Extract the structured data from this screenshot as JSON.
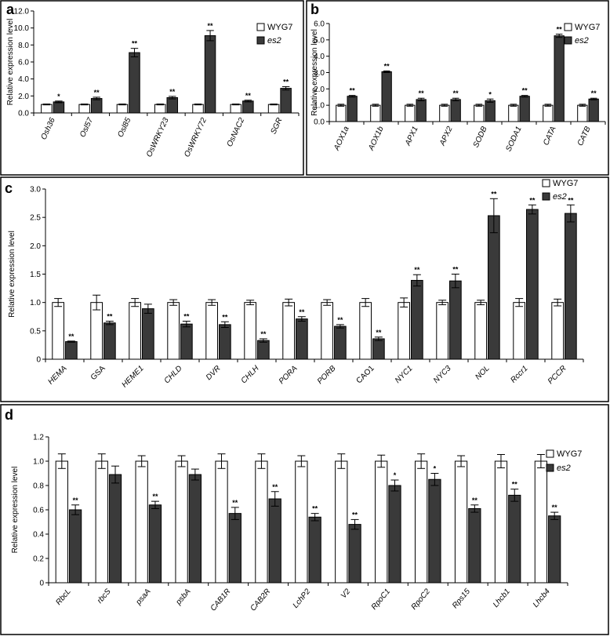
{
  "chart_data": [
    {
      "type": "bar",
      "panel_label": "a",
      "ylabel": "Relative expression level",
      "ylim": [
        0,
        12
      ],
      "yticks": [
        "0.0",
        "2.0",
        "4.0",
        "6.0",
        "8.0",
        "10.0",
        "12.0"
      ],
      "categories": [
        "Osh36",
        "Osl57",
        "Osl85",
        "OsWRKY23",
        "OsWRKY72",
        "OsNAC2",
        "SGR"
      ],
      "series": [
        {
          "name": "WYG7",
          "values": [
            1,
            1,
            1,
            1,
            1,
            1,
            1
          ],
          "errors": [
            0.05,
            0.05,
            0.05,
            0.05,
            0.05,
            0.05,
            0.05
          ]
        },
        {
          "name": "es2",
          "values": [
            1.3,
            1.7,
            7.1,
            1.8,
            9.1,
            1.4,
            2.9
          ],
          "errors": [
            0.1,
            0.15,
            0.5,
            0.15,
            0.6,
            0.1,
            0.2
          ]
        }
      ],
      "significance": [
        "*",
        "**",
        "**",
        "**",
        "**",
        "**",
        "**"
      ],
      "legend": [
        "WYG7",
        "es2"
      ],
      "legend_position": "top-right"
    },
    {
      "type": "bar",
      "panel_label": "b",
      "ylabel": "Relative expression level",
      "ylim": [
        0,
        6
      ],
      "yticks": [
        "0.0",
        "1.0",
        "2.0",
        "3.0",
        "4.0",
        "5.0",
        "6.0"
      ],
      "categories": [
        "AOX1a",
        "AOX1b",
        "APX1",
        "APX2",
        "SODB",
        "SODA1",
        "CATA",
        "CATB"
      ],
      "series": [
        {
          "name": "WYG7",
          "values": [
            1,
            1,
            1,
            1,
            1,
            1,
            1,
            1
          ],
          "errors": [
            0.06,
            0.06,
            0.06,
            0.06,
            0.06,
            0.06,
            0.06,
            0.06
          ]
        },
        {
          "name": "es2",
          "values": [
            1.55,
            3.05,
            1.35,
            1.35,
            1.28,
            1.55,
            5.25,
            1.38
          ],
          "errors": [
            0.05,
            0.05,
            0.08,
            0.08,
            0.1,
            0.05,
            0.1,
            0.05
          ]
        }
      ],
      "significance": [
        "**",
        "**",
        "**",
        "**",
        "*",
        "**",
        "**",
        "**"
      ],
      "legend": [
        "WYG7",
        "es2"
      ],
      "legend_position": "top-right"
    },
    {
      "type": "bar",
      "panel_label": "c",
      "ylabel": "Relative expression level",
      "ylim": [
        0,
        3
      ],
      "yticks": [
        "0",
        "0.5",
        "1.0",
        "1.5",
        "2.0",
        "2.5",
        "3.0"
      ],
      "categories": [
        "HEMA",
        "GSA",
        "HEME1",
        "CHLD",
        "DVR",
        "CHLH",
        "PORA",
        "PORB",
        "CAO1",
        "NYC1",
        "NYC3",
        "NOL",
        "Rccr1",
        "PCCR"
      ],
      "italic": [
        true,
        false,
        true,
        true,
        true,
        true,
        true,
        true,
        false,
        true,
        true,
        true,
        true,
        true
      ],
      "series": [
        {
          "name": "WYG7",
          "values": [
            1,
            1,
            1,
            1,
            1,
            1,
            1,
            1,
            1,
            1,
            1,
            1,
            1,
            1
          ],
          "errors": [
            0.07,
            0.13,
            0.07,
            0.05,
            0.05,
            0.04,
            0.06,
            0.05,
            0.07,
            0.08,
            0.04,
            0.04,
            0.07,
            0.06
          ]
        },
        {
          "name": "es2",
          "values": [
            0.31,
            0.64,
            0.89,
            0.62,
            0.61,
            0.33,
            0.71,
            0.58,
            0.36,
            1.39,
            1.38,
            2.53,
            2.64,
            2.57
          ],
          "errors": [
            0.01,
            0.03,
            0.08,
            0.05,
            0.05,
            0.03,
            0.04,
            0.03,
            0.03,
            0.1,
            0.12,
            0.3,
            0.08,
            0.15
          ]
        }
      ],
      "significance": [
        "**",
        "**",
        "",
        "**",
        "**",
        "**",
        "**",
        "**",
        "**",
        "**",
        "**",
        "**",
        "**",
        "**"
      ],
      "legend": [
        "WYG7",
        "es2"
      ],
      "legend_position": "top-right"
    },
    {
      "type": "bar",
      "panel_label": "d",
      "ylabel": "Relative expression level",
      "ylim": [
        0,
        1.2
      ],
      "yticks": [
        "0",
        "0.2",
        "0.4",
        "0.6",
        "0.8",
        "1.0",
        "1.2"
      ],
      "categories": [
        "RbcL",
        "rbcS",
        "psaA",
        "psbA",
        "CAB1R",
        "CAB2R",
        "LchP2",
        "V2",
        "RpoC1",
        "RpoC2",
        "Rps15",
        "Lhcb1",
        "Lhcb4"
      ],
      "series": [
        {
          "name": "WYG7",
          "values": [
            1,
            1,
            1,
            1,
            1,
            1,
            1,
            1,
            1,
            1,
            1,
            1,
            1
          ],
          "errors": [
            0.06,
            0.06,
            0.045,
            0.045,
            0.06,
            0.06,
            0.045,
            0.06,
            0.05,
            0.06,
            0.045,
            0.055,
            0.055
          ]
        },
        {
          "name": "es2",
          "values": [
            0.6,
            0.89,
            0.64,
            0.89,
            0.57,
            0.69,
            0.54,
            0.48,
            0.8,
            0.85,
            0.61,
            0.72,
            0.55
          ],
          "errors": [
            0.04,
            0.07,
            0.03,
            0.045,
            0.05,
            0.06,
            0.03,
            0.04,
            0.045,
            0.05,
            0.03,
            0.05,
            0.03
          ]
        }
      ],
      "significance": [
        "**",
        "",
        "**",
        "",
        "**",
        "**",
        "**",
        "**",
        "*",
        "*",
        "**",
        "**",
        "**"
      ],
      "legend": [
        "WYG7",
        "es2"
      ],
      "legend_position": "top-right"
    }
  ]
}
